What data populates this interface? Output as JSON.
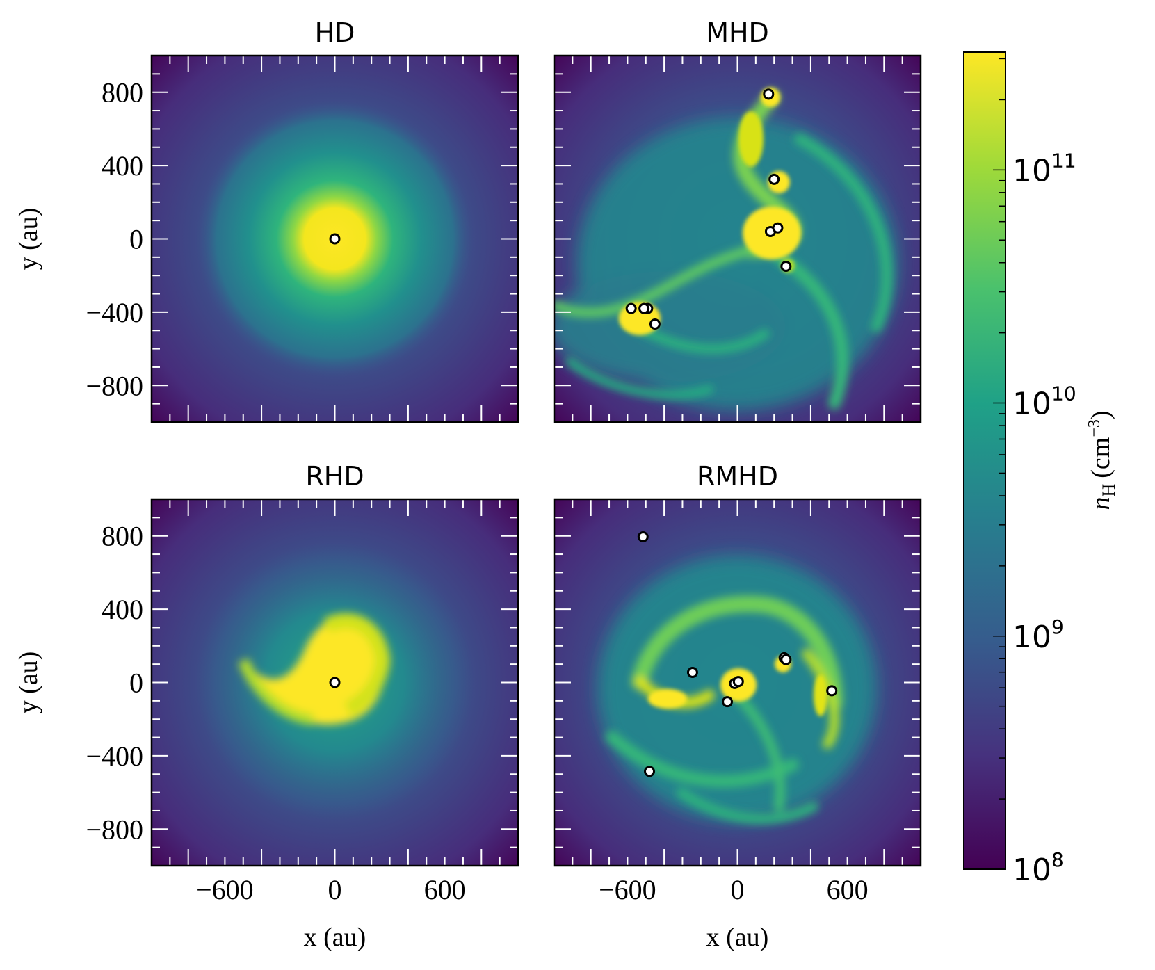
{
  "chart_data": {
    "type": "heatmap",
    "colorbar": {
      "label_symbol": "n",
      "label_sub": "H",
      "label_unit": "(cm",
      "label_exp": "−3",
      "label_close": ")",
      "scale": "log",
      "range": [
        100000000.0,
        320000000000.0
      ],
      "ticks": [
        {
          "mantissa": "10",
          "exponent": "11",
          "value": 100000000000.0
        },
        {
          "mantissa": "10",
          "exponent": "10",
          "value": 10000000000.0
        },
        {
          "mantissa": "10",
          "exponent": "9",
          "value": 1000000000.0
        },
        {
          "mantissa": "10",
          "exponent": "8",
          "value": 100000000.0
        }
      ],
      "colormap": [
        "#440154",
        "#46327e",
        "#365c8d",
        "#277f8e",
        "#1fa187",
        "#4ac16d",
        "#a0da39",
        "#fde725"
      ]
    },
    "panels": [
      {
        "title": "HD",
        "xlabel": "",
        "ylabel": "y (au)",
        "xlim": [
          -1000,
          1000
        ],
        "ylim": [
          -1000,
          1000
        ],
        "x_ticks": [],
        "y_ticks": [
          "800",
          "400",
          "0",
          "−400",
          "−800"
        ],
        "sinks": [
          [
            0,
            0
          ]
        ]
      },
      {
        "title": "MHD",
        "xlabel": "",
        "ylabel": "",
        "xlim": [
          -1000,
          1000
        ],
        "ylim": [
          -1000,
          1000
        ],
        "x_ticks": [],
        "y_ticks": [],
        "sinks": [
          [
            170,
            790
          ],
          [
            200,
            325
          ],
          [
            180,
            40
          ],
          [
            220,
            60
          ],
          [
            265,
            -150
          ],
          [
            -580,
            -380
          ],
          [
            -490,
            -380
          ],
          [
            -510,
            -380
          ],
          [
            -450,
            -465
          ]
        ]
      },
      {
        "title": "RHD",
        "xlabel": "x (au)",
        "ylabel": "y (au)",
        "xlim": [
          -1000,
          1000
        ],
        "ylim": [
          -1000,
          1000
        ],
        "x_ticks": [
          "−600",
          "0",
          "600"
        ],
        "y_ticks": [
          "800",
          "400",
          "0",
          "−400",
          "−800"
        ],
        "sinks": [
          [
            0,
            0
          ]
        ]
      },
      {
        "title": "RMHD",
        "xlabel": "x (au)",
        "ylabel": "",
        "xlim": [
          -1000,
          1000
        ],
        "ylim": [
          -1000,
          1000
        ],
        "x_ticks": [
          "−600",
          "0",
          "600"
        ],
        "y_ticks": [],
        "sinks": [
          [
            -515,
            795
          ],
          [
            -245,
            55
          ],
          [
            -15,
            -5
          ],
          [
            5,
            5
          ],
          [
            -55,
            -105
          ],
          [
            255,
            135
          ],
          [
            265,
            125
          ],
          [
            515,
            -45
          ],
          [
            -480,
            -485
          ]
        ]
      }
    ]
  }
}
